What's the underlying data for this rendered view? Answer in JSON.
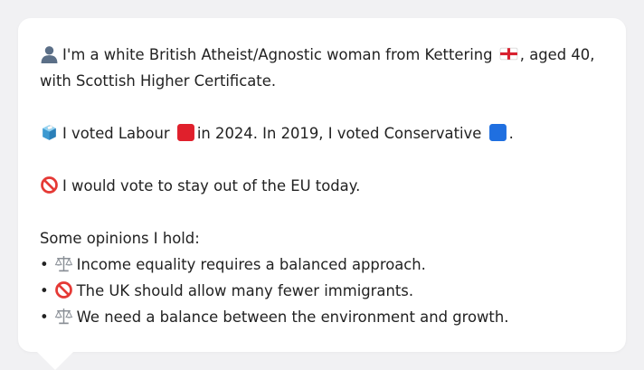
{
  "profile": {
    "line1": "I'm a white British Atheist/Agnostic woman from Kettering",
    "line1_suffix": ", aged 40,",
    "line2": "with Scottish Higher Certificate.",
    "icon": "person-silhouette-icon",
    "flag": "england-flag-icon"
  },
  "vote": {
    "part1": "I voted Labour",
    "part2": "in 2024. In 2019, I voted Conservative",
    "part3": ".",
    "icon": "ballot-box-icon",
    "labour_color": "#e0202c",
    "conservative_color": "#1f6fe0"
  },
  "eu": {
    "text": "I would vote to stay out of the EU today.",
    "icon": "prohibited-icon"
  },
  "opinions": {
    "heading": "Some opinions I hold:",
    "bullet": "•",
    "items": [
      {
        "icon": "balance-scale-icon",
        "text": "Income equality requires a balanced approach."
      },
      {
        "icon": "prohibited-icon",
        "text": "The UK should allow many fewer immigrants."
      },
      {
        "icon": "balance-scale-icon",
        "text": "We need a balance between the environment and growth."
      }
    ]
  }
}
